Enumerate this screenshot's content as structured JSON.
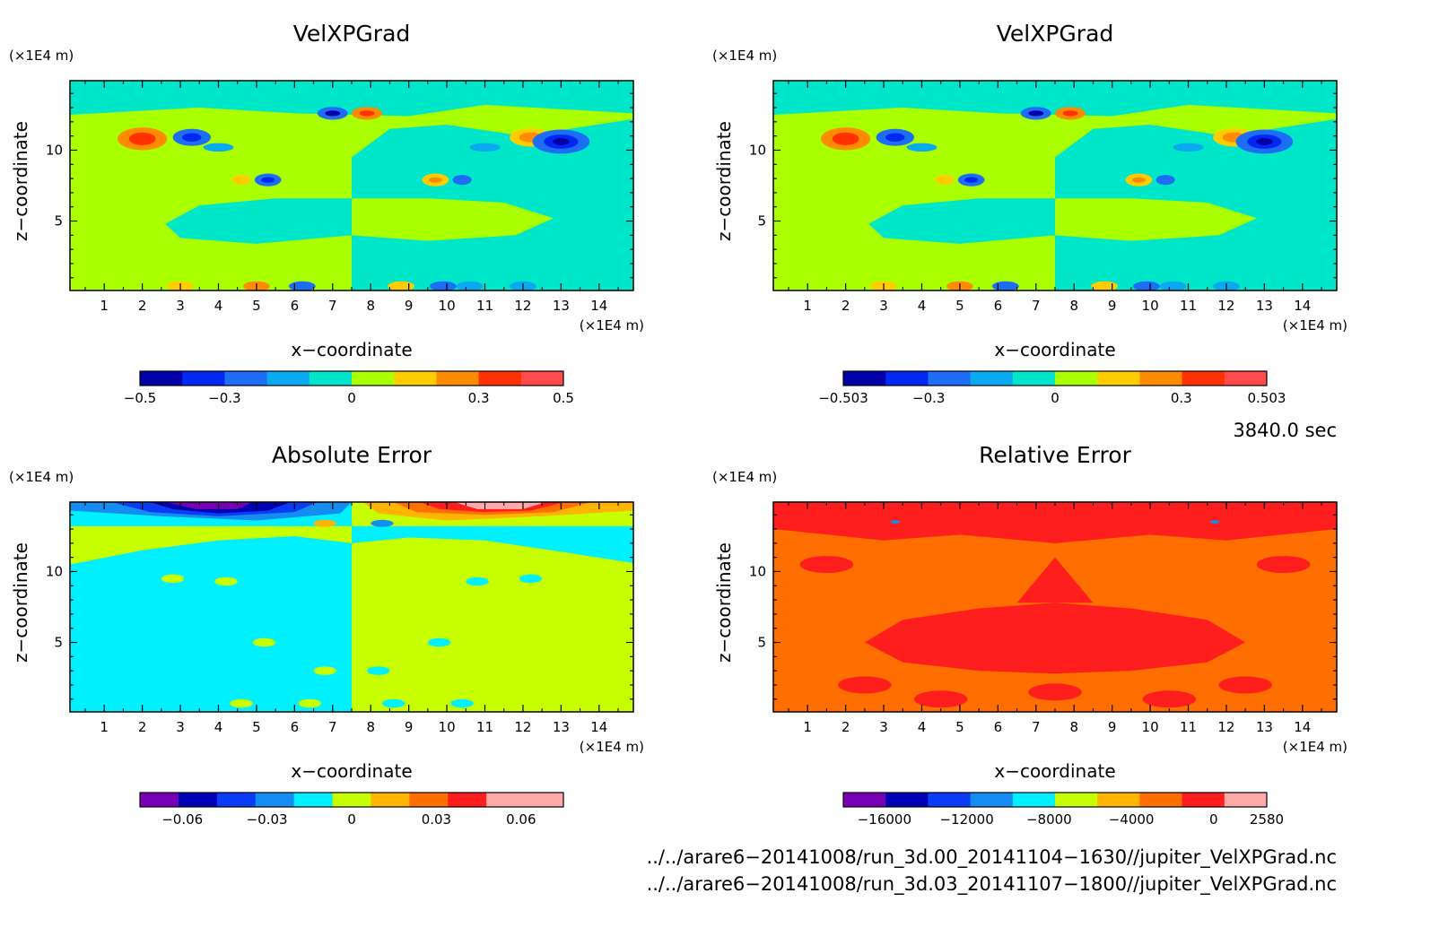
{
  "panels": [
    {
      "title": "VelXPGrad",
      "unit_y": "(×1E4 m)",
      "unit_x": "(×1E4 m)",
      "xlabel": "x−coordinate",
      "ylabel": "z−coordinate",
      "colorbar_labels": [
        "−0.5",
        "−0.3",
        "0",
        "0.3",
        "0.5"
      ]
    },
    {
      "title": "VelXPGrad",
      "unit_y": "(×1E4 m)",
      "unit_x": "(×1E4 m)",
      "xlabel": "x−coordinate",
      "ylabel": "z−coordinate",
      "colorbar_labels": [
        "−0.503",
        "−0.3",
        "0",
        "0.3",
        "0.503"
      ]
    },
    {
      "title": "Absolute Error",
      "unit_y": "(×1E4 m)",
      "unit_x": "(×1E4 m)",
      "xlabel": "x−coordinate",
      "ylabel": "z−coordinate",
      "colorbar_labels": [
        "−0.06",
        "−0.03",
        "0",
        "0.03",
        "0.06"
      ]
    },
    {
      "title": "Relative Error",
      "unit_y": "(×1E4 m)",
      "unit_x": "(×1E4 m)",
      "xlabel": "x−coordinate",
      "ylabel": "z−coordinate",
      "colorbar_labels": [
        "−16000",
        "−12000",
        "−8000",
        "−4000",
        "0",
        "2580"
      ]
    }
  ],
  "time_label": "3840.0 sec",
  "file_paths": [
    "../../arare6−20141008/run_3d.00_20141104−1630//jupiter_VelXPGrad.nc",
    "../../arare6−20141008/run_3d.03_20141107−1800//jupiter_VelXPGrad.nc"
  ],
  "chart_data": [
    {
      "type": "heatmap",
      "title": "VelXPGrad",
      "xlabel": "x−coordinate",
      "ylabel": "z−coordinate",
      "x_ticks": [
        1,
        2,
        3,
        4,
        5,
        6,
        7,
        8,
        9,
        10,
        11,
        12,
        13,
        14
      ],
      "y_ticks": [
        5,
        10
      ],
      "xlim": [
        0.1,
        14.9
      ],
      "ylim": [
        0.1,
        14.9
      ],
      "colorbar": {
        "min": -0.5,
        "max": 0.5,
        "levels": 10,
        "colors": [
          "#0000a8",
          "#0028f0",
          "#1e6ef5",
          "#0aaaf0",
          "#00e6c8",
          "#aaff00",
          "#ffcc00",
          "#ff8c00",
          "#ff3200",
          "#ff4b4b"
        ],
        "labels": [
          "−0.5",
          "−0.3",
          "0",
          "0.3",
          "0.5"
        ]
      }
    },
    {
      "type": "heatmap",
      "title": "VelXPGrad",
      "xlabel": "x−coordinate",
      "ylabel": "z−coordinate",
      "x_ticks": [
        1,
        2,
        3,
        4,
        5,
        6,
        7,
        8,
        9,
        10,
        11,
        12,
        13,
        14
      ],
      "y_ticks": [
        5,
        10
      ],
      "xlim": [
        0.1,
        14.9
      ],
      "ylim": [
        0.1,
        14.9
      ],
      "colorbar": {
        "min": -0.503,
        "max": 0.503,
        "levels": 10,
        "colors": [
          "#0000a8",
          "#0028f0",
          "#1e6ef5",
          "#0aaaf0",
          "#00e6c8",
          "#aaff00",
          "#ffcc00",
          "#ff8c00",
          "#ff3200",
          "#ff4b4b"
        ],
        "labels": [
          "−0.503",
          "−0.3",
          "0",
          "0.3",
          "0.503"
        ]
      }
    },
    {
      "type": "heatmap",
      "title": "Absolute Error",
      "xlabel": "x−coordinate",
      "ylabel": "z−coordinate",
      "x_ticks": [
        1,
        2,
        3,
        4,
        5,
        6,
        7,
        8,
        9,
        10,
        11,
        12,
        13,
        14
      ],
      "y_ticks": [
        5,
        10
      ],
      "xlim": [
        0.1,
        14.9
      ],
      "ylim": [
        0.1,
        14.9
      ],
      "colorbar": {
        "min": -0.075,
        "max": 0.075,
        "levels": 11,
        "colors": [
          "#7800b4",
          "#0000b4",
          "#0a3cf5",
          "#148cf0",
          "#00f0ff",
          "#c8ff00",
          "#ffb400",
          "#ff6e00",
          "#ff1e1e",
          "#ffaaaa",
          "#ffaaaa"
        ],
        "labels": [
          "−0.06",
          "−0.03",
          "0",
          "0.03",
          "0.06"
        ]
      }
    },
    {
      "type": "heatmap",
      "title": "Relative Error",
      "xlabel": "x−coordinate",
      "ylabel": "z−coordinate",
      "x_ticks": [
        1,
        2,
        3,
        4,
        5,
        6,
        7,
        8,
        9,
        10,
        11,
        12,
        13,
        14
      ],
      "y_ticks": [
        5,
        10
      ],
      "xlim": [
        0.1,
        14.9
      ],
      "ylim": [
        0.1,
        14.9
      ],
      "colorbar": {
        "min": -18000,
        "max": 2580,
        "levels": 10,
        "colors": [
          "#7800b4",
          "#0000b4",
          "#0a3cf5",
          "#148cf0",
          "#00f0ff",
          "#c8ff00",
          "#ffb400",
          "#ff6e00",
          "#ff1e1e",
          "#ffaaaa"
        ],
        "labels": [
          "−16000",
          "−12000",
          "−8000",
          "−4000",
          "0",
          "2580"
        ]
      }
    }
  ]
}
